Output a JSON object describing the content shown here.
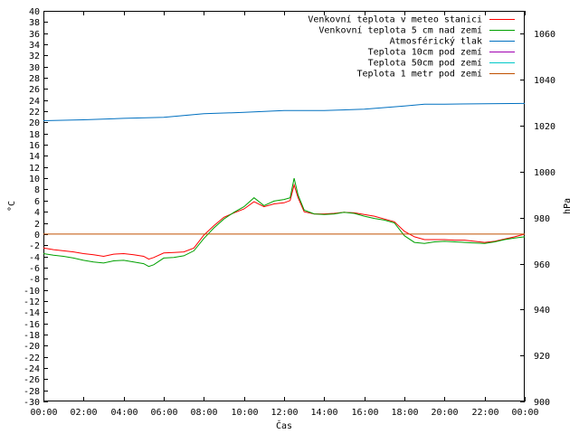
{
  "chart_data": {
    "type": "line",
    "xlabel": "Čas",
    "ylabel": "°C",
    "y2label": "hPa",
    "x_ticks": [
      "00:00",
      "02:00",
      "04:00",
      "06:00",
      "08:00",
      "10:00",
      "12:00",
      "14:00",
      "16:00",
      "18:00",
      "20:00",
      "22:00",
      "00:00"
    ],
    "xlim_hours": [
      0,
      24
    ],
    "ylim": [
      -30,
      40
    ],
    "y_ticks": [
      -30,
      -28,
      -26,
      -24,
      -22,
      -20,
      -18,
      -16,
      -14,
      -12,
      -10,
      -8,
      -6,
      -4,
      -2,
      0,
      2,
      4,
      6,
      8,
      10,
      12,
      14,
      16,
      18,
      20,
      22,
      24,
      26,
      28,
      30,
      32,
      34,
      36,
      38,
      40
    ],
    "y2lim": [
      900,
      1070
    ],
    "y2_ticks": [
      900,
      920,
      940,
      960,
      980,
      1000,
      1020,
      1040,
      1060
    ],
    "grid": false,
    "legend_position": "top-right",
    "series": [
      {
        "name": "Venkovní teplota v meteo stanici",
        "color": "#ff0000",
        "axis": "y",
        "x": [
          0,
          0.5,
          1,
          1.5,
          2,
          2.5,
          3,
          3.5,
          4,
          4.5,
          5,
          5.25,
          5.5,
          6,
          6.5,
          7,
          7.5,
          8,
          8.5,
          9,
          9.5,
          10,
          10.5,
          11,
          11.5,
          12,
          12.3,
          12.5,
          12.7,
          13,
          13.5,
          14,
          14.5,
          15,
          15.5,
          16,
          16.5,
          17,
          17.5,
          18,
          18.5,
          19,
          19.5,
          20,
          20.5,
          21,
          21.5,
          22,
          22.5,
          23,
          23.5,
          24
        ],
        "values": [
          -2.5,
          -2.8,
          -3,
          -3.2,
          -3.5,
          -3.7,
          -4,
          -3.6,
          -3.5,
          -3.7,
          -4,
          -4.5,
          -4.2,
          -3.4,
          -3.3,
          -3.2,
          -2.5,
          -0.2,
          1.5,
          3,
          3.8,
          4.5,
          5.8,
          4.9,
          5.4,
          5.6,
          6,
          8.8,
          6.5,
          4,
          3.6,
          3.6,
          3.7,
          3.9,
          3.8,
          3.5,
          3.2,
          2.7,
          2.2,
          0.5,
          -0.5,
          -1,
          -1,
          -1,
          -1.1,
          -1.1,
          -1.3,
          -1.5,
          -1.3,
          -0.9,
          -0.5,
          0
        ]
      },
      {
        "name": "Venkovní teplota 5 cm nad zemí",
        "color": "#00a000",
        "axis": "y",
        "x": [
          0,
          0.5,
          1,
          1.5,
          2,
          2.5,
          3,
          3.5,
          4,
          4.5,
          5,
          5.25,
          5.5,
          6,
          6.5,
          7,
          7.5,
          8,
          8.5,
          9,
          9.5,
          10,
          10.5,
          11,
          11.5,
          12,
          12.3,
          12.5,
          12.7,
          13,
          13.5,
          14,
          14.5,
          15,
          15.5,
          16,
          16.5,
          17,
          17.5,
          18,
          18.5,
          19,
          19.5,
          20,
          20.5,
          21,
          21.5,
          22,
          22.5,
          23,
          23.5,
          24
        ],
        "values": [
          -3.5,
          -3.8,
          -4,
          -4.3,
          -4.7,
          -5,
          -5.2,
          -4.8,
          -4.7,
          -5,
          -5.3,
          -5.8,
          -5.5,
          -4.3,
          -4.2,
          -3.9,
          -3,
          -0.8,
          1.1,
          2.7,
          3.9,
          4.9,
          6.5,
          5.1,
          5.9,
          6.2,
          6.5,
          10,
          7,
          4.3,
          3.6,
          3.5,
          3.6,
          3.9,
          3.7,
          3.2,
          2.8,
          2.5,
          2,
          -0.3,
          -1.5,
          -1.7,
          -1.4,
          -1.3,
          -1.4,
          -1.5,
          -1.6,
          -1.7,
          -1.4,
          -1,
          -0.7,
          -0.5
        ]
      },
      {
        "name": "Atmosférický tlak",
        "color": "#0070c0",
        "axis": "y2",
        "x": [
          0,
          2,
          4,
          6,
          8,
          10,
          12,
          14,
          16,
          18,
          19,
          20,
          22,
          24
        ],
        "values": [
          1022.2,
          1022.6,
          1023.2,
          1023.7,
          1025.2,
          1025.8,
          1026.6,
          1026.6,
          1027.2,
          1028.6,
          1029.4,
          1029.4,
          1029.6,
          1029.7
        ]
      },
      {
        "name": "Teplota 10cm pod zemí",
        "color": "#a000b0",
        "axis": "y",
        "x": [],
        "values": []
      },
      {
        "name": "Teplota 50cm pod zemí",
        "color": "#00c8c8",
        "axis": "y",
        "x": [],
        "values": []
      },
      {
        "name": "Teplota 1 metr pod zemí",
        "color": "#c05000",
        "axis": "y",
        "x": [
          0,
          24
        ],
        "values": [
          0,
          0
        ]
      }
    ]
  }
}
